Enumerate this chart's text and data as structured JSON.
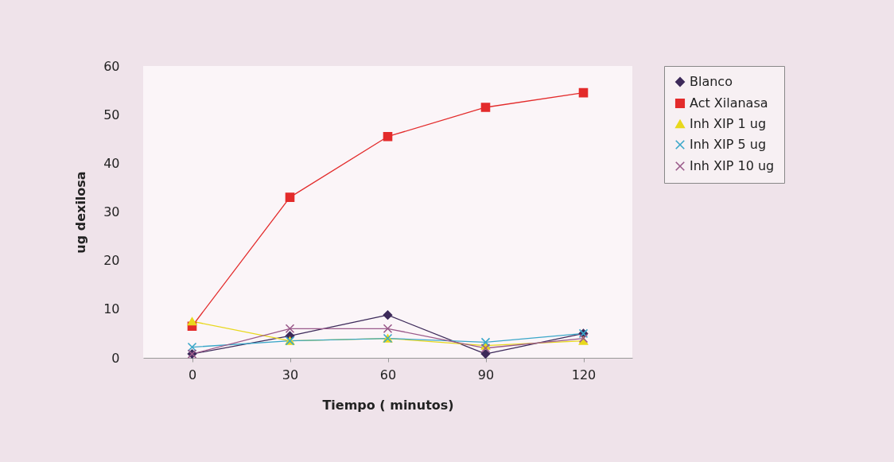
{
  "chart_data": {
    "type": "line",
    "xlabel": "Tiempo ( minutos)",
    "ylabel": "ug dexilosa",
    "categories": [
      "0",
      "30",
      "60",
      "90",
      "120"
    ],
    "series": [
      {
        "name": "Blanco",
        "color": "#3d2a5a",
        "marker": "diamond",
        "values": [
          0.8,
          4.5,
          8.8,
          0.8,
          5
        ]
      },
      {
        "name": "Act Xilanasa",
        "color": "#e32b2b",
        "marker": "square",
        "values": [
          6.5,
          33,
          45.5,
          51.5,
          54.5
        ]
      },
      {
        "name": "Inh XIP 1 ug",
        "color": "#e8d81c",
        "marker": "triangle",
        "values": [
          7.5,
          3.5,
          4,
          2.5,
          3.5
        ]
      },
      {
        "name": "Inh XIP 5 ug",
        "color": "#3aa7c9",
        "marker": "cross",
        "values": [
          2.2,
          3.5,
          4,
          3.2,
          5
        ]
      },
      {
        "name": "Inh XIP 10 ug",
        "color": "#9a5a8a",
        "marker": "cross",
        "values": [
          0.8,
          6,
          6,
          2,
          4
        ]
      }
    ],
    "ylim": [
      0,
      60
    ],
    "yticks": [
      0,
      10,
      20,
      30,
      40,
      50,
      60
    ],
    "grid": false,
    "legend": "right",
    "line_style": "solid"
  }
}
